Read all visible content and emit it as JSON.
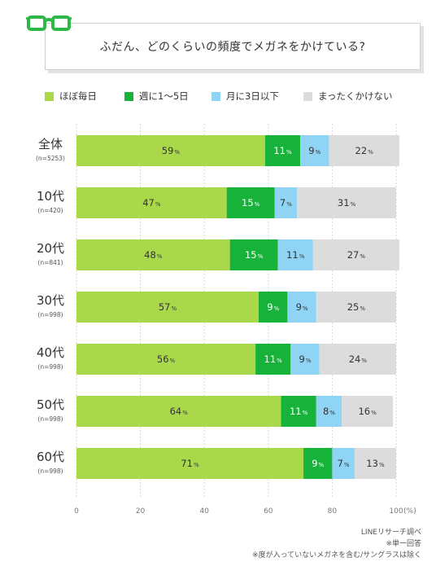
{
  "header": {
    "title": "ふだん、どのくらいの頻度でメガネをかけている?",
    "icon": "glasses-icon",
    "icon_color": "#2fb84a"
  },
  "legend": [
    {
      "label": "ほぼ毎日",
      "color": "#a9d94a"
    },
    {
      "label": "週に1〜5日",
      "color": "#17b23a"
    },
    {
      "label": "月に3日以下",
      "color": "#8fd3f5"
    },
    {
      "label": "まったくかけない",
      "color": "#dcdcdc"
    }
  ],
  "chart_data": {
    "type": "bar",
    "orientation": "horizontal",
    "stacked": true,
    "categories": [
      "全体",
      "10代",
      "20代",
      "30代",
      "40代",
      "50代",
      "60代"
    ],
    "category_notes": [
      "(n=5253)",
      "(n=420)",
      "(n=841)",
      "(n=998)",
      "(n=998)",
      "(n=998)",
      "(n=998)"
    ],
    "series": [
      {
        "name": "ほぼ毎日",
        "color": "#a9d94a",
        "values": [
          59,
          47,
          48,
          57,
          56,
          64,
          71
        ]
      },
      {
        "name": "週に1〜5日",
        "color": "#17b23a",
        "values": [
          11,
          15,
          15,
          9,
          11,
          11,
          9
        ]
      },
      {
        "name": "月に3日以下",
        "color": "#8fd3f5",
        "values": [
          9,
          7,
          11,
          9,
          9,
          8,
          7
        ]
      },
      {
        "name": "まったくかけない",
        "color": "#dcdcdc",
        "values": [
          22,
          31,
          27,
          25,
          24,
          16,
          13
        ]
      }
    ],
    "value_suffix": "%",
    "xlim": [
      0,
      100
    ],
    "x_ticks": [
      0,
      20,
      40,
      60,
      80,
      100
    ],
    "x_unit": "(%)",
    "grid": true
  },
  "notes": [
    "LINEリサーチ調べ",
    "※単一回答",
    "※度が入っていないメガネを含む/サングラスは除く"
  ]
}
